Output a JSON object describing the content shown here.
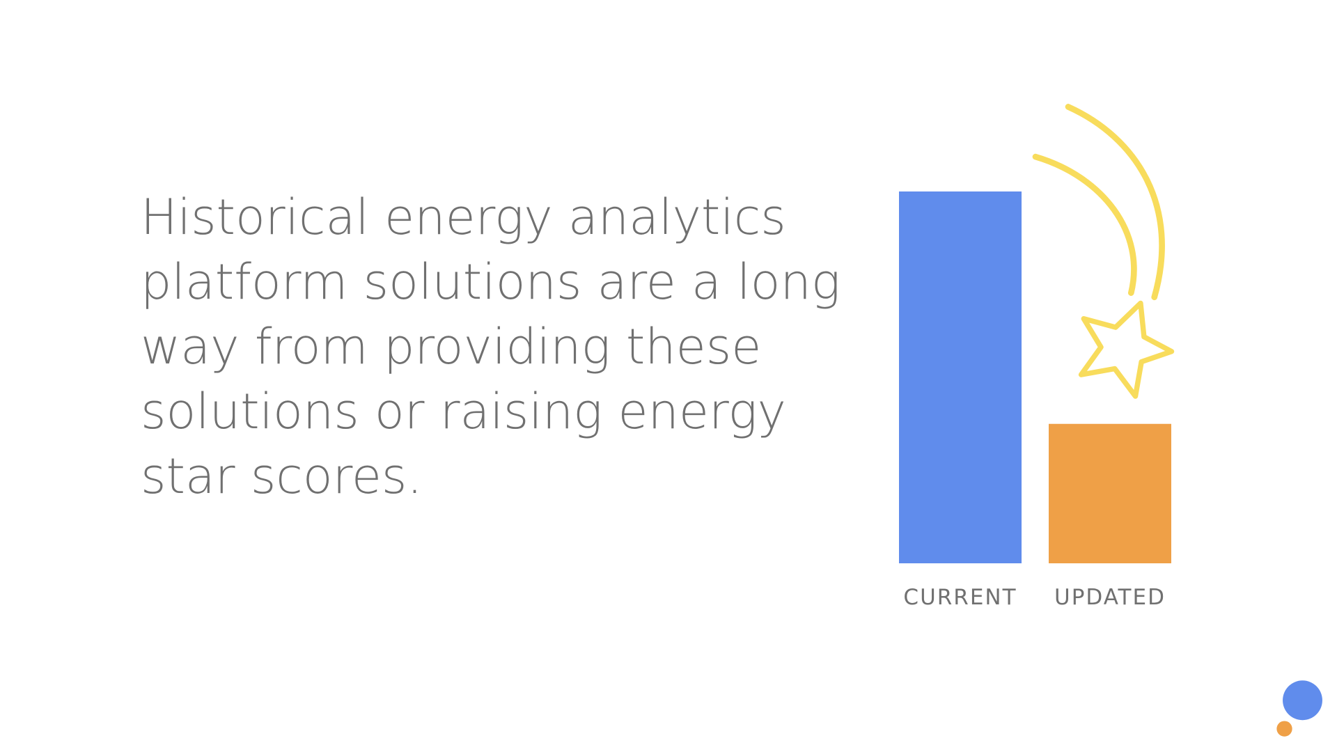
{
  "body_text": [
    "Historical energy analytics",
    "platform solutions are a long",
    "way from providing these",
    "solutions or raising energy",
    "star scores."
  ],
  "chart_data": {
    "type": "bar",
    "categories": [
      "CURRENT",
      "UPDATED"
    ],
    "values": [
      100,
      37.5
    ],
    "colors": [
      "#608cec",
      "#efa047"
    ],
    "ylim": [
      0,
      100
    ]
  }
}
